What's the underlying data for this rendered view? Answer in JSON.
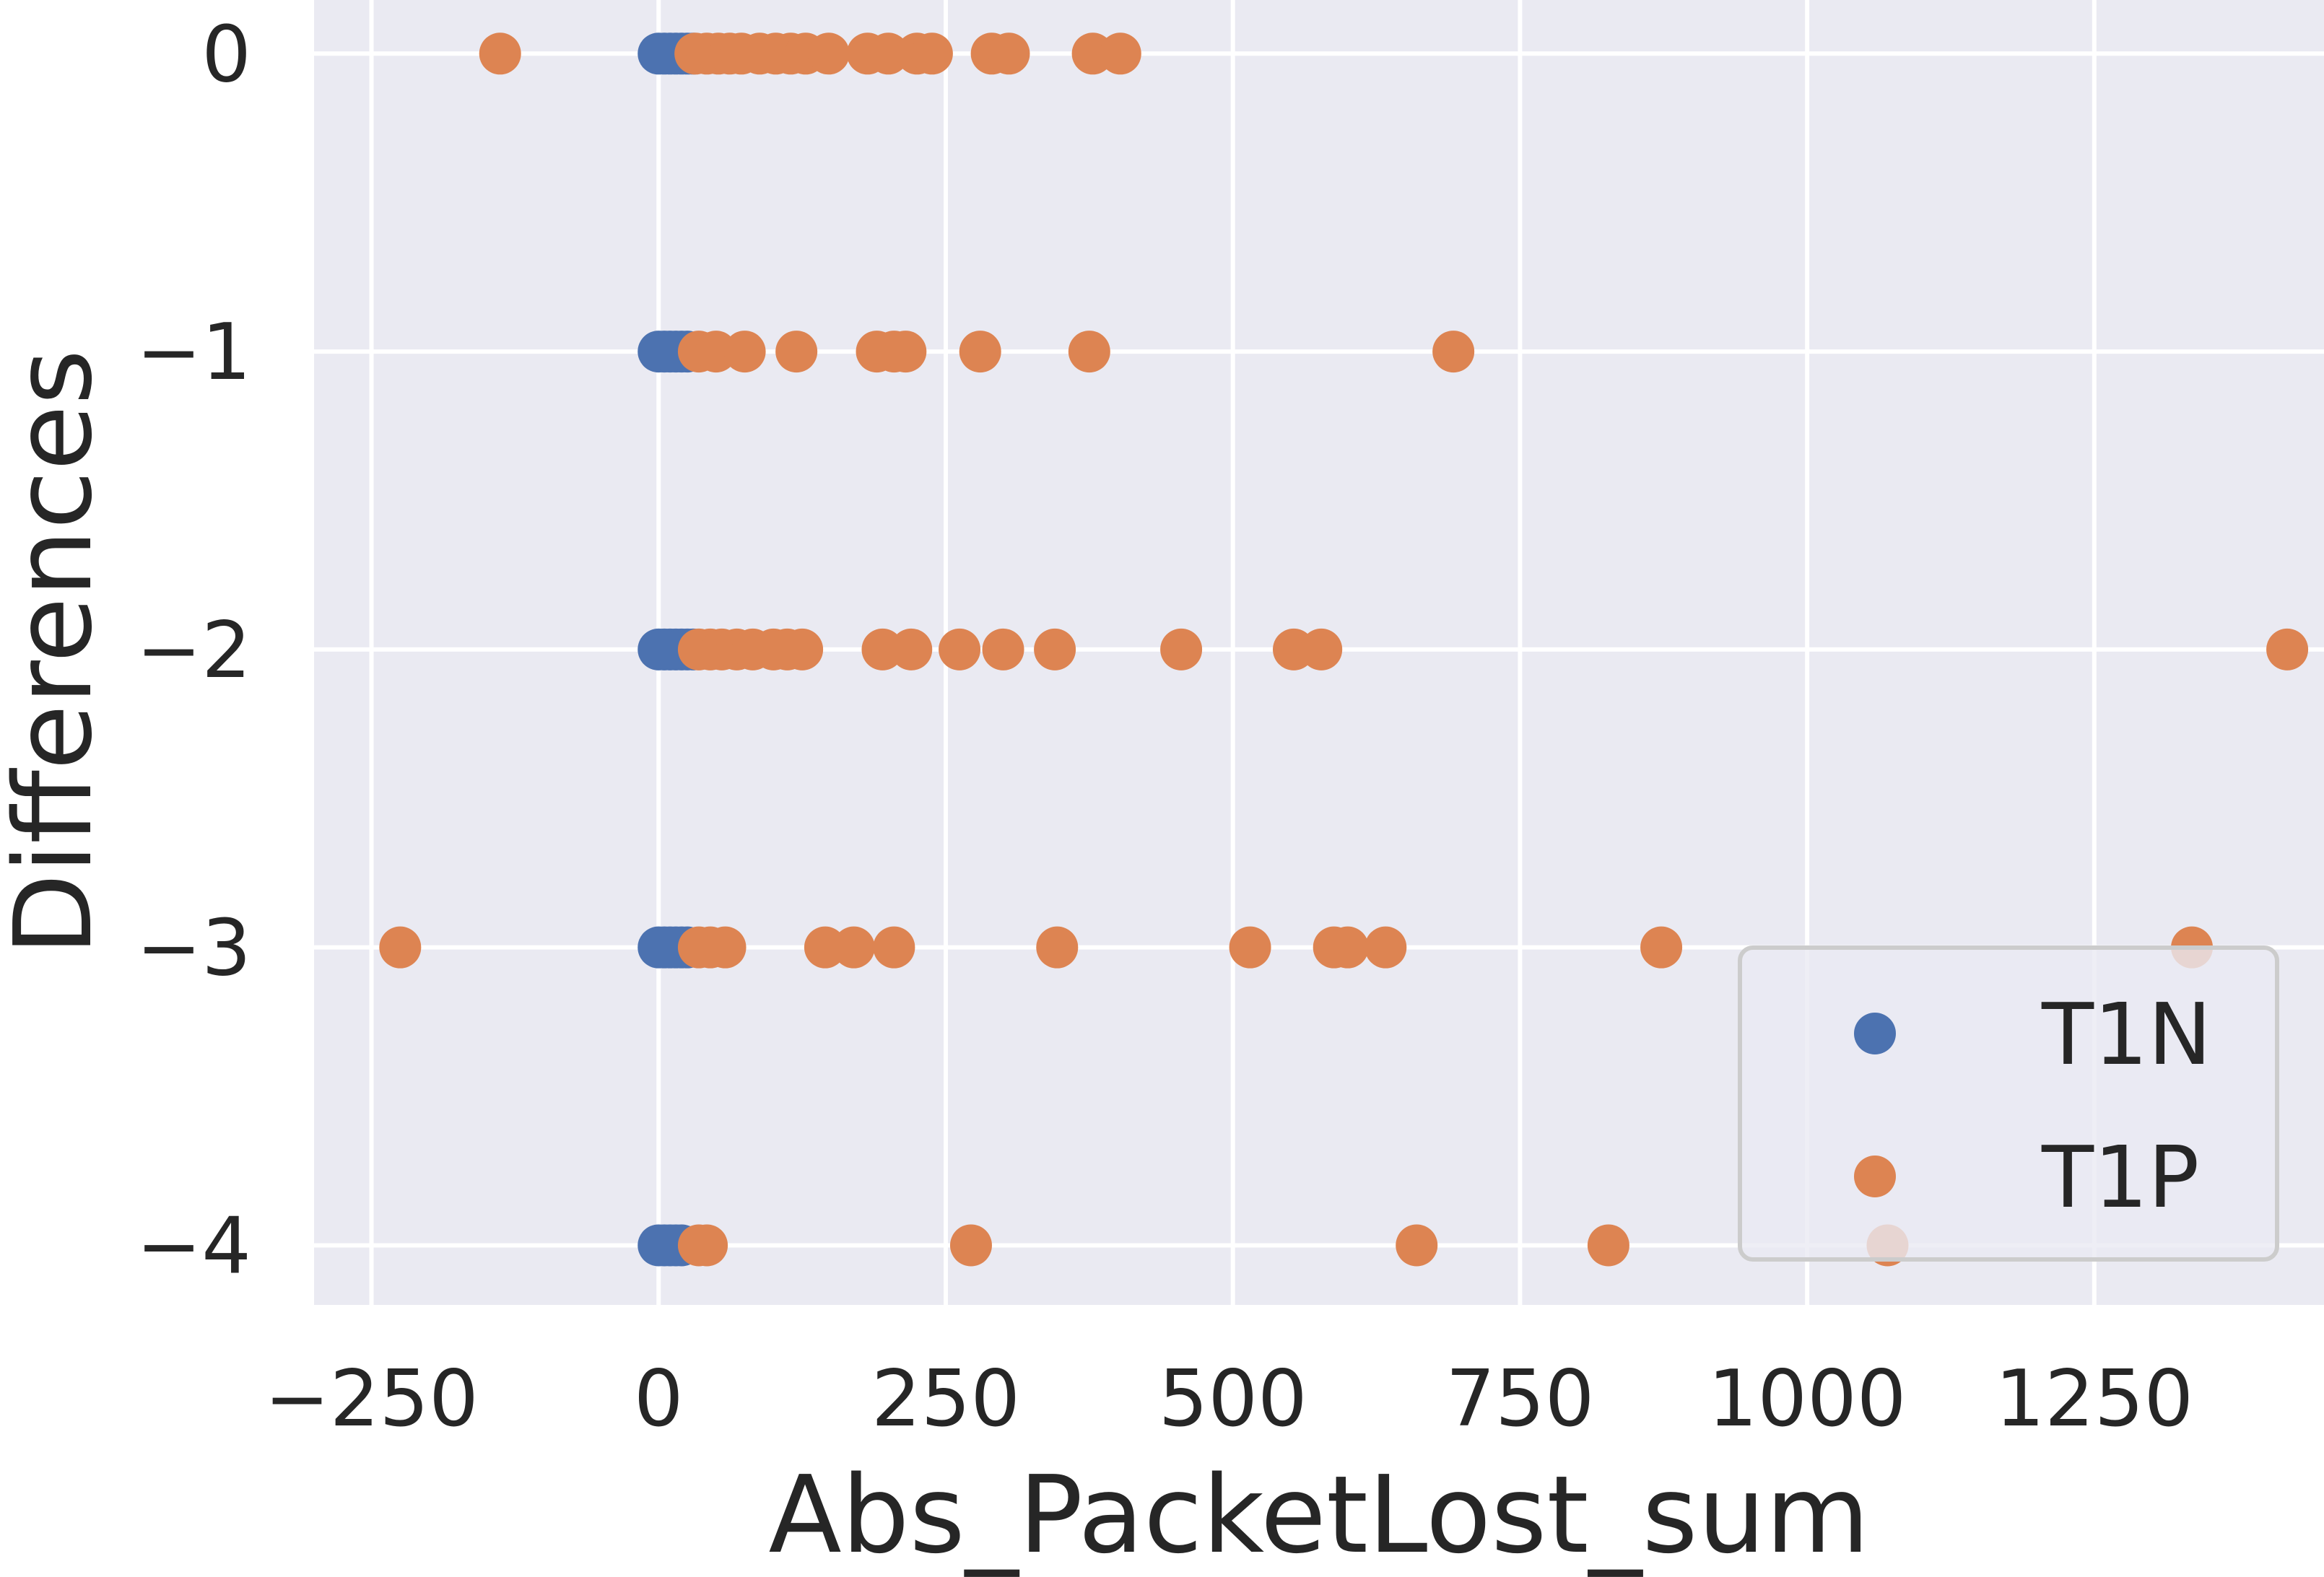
{
  "chart_data": {
    "type": "scatter",
    "title": "",
    "xlabel": "Abs_PacketLost_sum",
    "ylabel": "Differences",
    "xlim": [
      -300,
      1450
    ],
    "ylim": [
      -4.2,
      0.18
    ],
    "xticks": [
      -250,
      0,
      250,
      500,
      750,
      1000,
      1250
    ],
    "xtick_labels": [
      "−250",
      "0",
      "250",
      "500",
      "750",
      "1000",
      "1250"
    ],
    "yticks": [
      0,
      -1,
      -2,
      -3,
      -4
    ],
    "ytick_labels": [
      "0",
      "−1",
      "−2",
      "−3",
      "−4"
    ],
    "grid": true,
    "legend_position": "lower right",
    "background": "#eaeaf2",
    "series": [
      {
        "name": "T1N",
        "color": "#4c72b0",
        "points": [
          [
            0,
            0
          ],
          [
            5,
            0
          ],
          [
            10,
            0
          ],
          [
            15,
            0
          ],
          [
            20,
            0
          ],
          [
            25,
            0
          ],
          [
            30,
            0
          ],
          [
            0,
            -1
          ],
          [
            5,
            -1
          ],
          [
            10,
            -1
          ],
          [
            15,
            -1
          ],
          [
            20,
            -1
          ],
          [
            25,
            -1
          ],
          [
            0,
            -2
          ],
          [
            5,
            -2
          ],
          [
            10,
            -2
          ],
          [
            15,
            -2
          ],
          [
            20,
            -2
          ],
          [
            25,
            -2
          ],
          [
            30,
            -2
          ],
          [
            0,
            -3
          ],
          [
            5,
            -3
          ],
          [
            10,
            -3
          ],
          [
            15,
            -3
          ],
          [
            20,
            -3
          ],
          [
            25,
            -3
          ],
          [
            0,
            -4
          ],
          [
            5,
            -4
          ],
          [
            10,
            -4
          ],
          [
            15,
            -4
          ],
          [
            20,
            -4
          ]
        ]
      },
      {
        "name": "T1P",
        "color": "#dd8452",
        "points": [
          [
            -138,
            0
          ],
          [
            32,
            0
          ],
          [
            42,
            0
          ],
          [
            52,
            0
          ],
          [
            62,
            0
          ],
          [
            72,
            0
          ],
          [
            88,
            0
          ],
          [
            102,
            0
          ],
          [
            115,
            0
          ],
          [
            128,
            0
          ],
          [
            148,
            0
          ],
          [
            182,
            0
          ],
          [
            200,
            0
          ],
          [
            225,
            0
          ],
          [
            238,
            0
          ],
          [
            290,
            0
          ],
          [
            305,
            0
          ],
          [
            378,
            0
          ],
          [
            402,
            0
          ],
          [
            35,
            -1
          ],
          [
            50,
            -1
          ],
          [
            75,
            -1
          ],
          [
            120,
            -1
          ],
          [
            190,
            -1
          ],
          [
            205,
            -1
          ],
          [
            215,
            -1
          ],
          [
            280,
            -1
          ],
          [
            375,
            -1
          ],
          [
            692,
            -1
          ],
          [
            35,
            -2
          ],
          [
            45,
            -2
          ],
          [
            55,
            -2
          ],
          [
            68,
            -2
          ],
          [
            82,
            -2
          ],
          [
            100,
            -2
          ],
          [
            112,
            -2
          ],
          [
            125,
            -2
          ],
          [
            195,
            -2
          ],
          [
            220,
            -2
          ],
          [
            262,
            -2
          ],
          [
            300,
            -2
          ],
          [
            345,
            -2
          ],
          [
            455,
            -2
          ],
          [
            553,
            -2
          ],
          [
            577,
            -2
          ],
          [
            1418,
            -2
          ],
          [
            -225,
            -3
          ],
          [
            35,
            -3
          ],
          [
            45,
            -3
          ],
          [
            58,
            -3
          ],
          [
            145,
            -3
          ],
          [
            170,
            -3
          ],
          [
            205,
            -3
          ],
          [
            347,
            -3
          ],
          [
            515,
            -3
          ],
          [
            588,
            -3
          ],
          [
            600,
            -3
          ],
          [
            633,
            -3
          ],
          [
            873,
            -3
          ],
          [
            1335,
            -3
          ],
          [
            35,
            -4
          ],
          [
            42,
            -4
          ],
          [
            272,
            -4
          ],
          [
            660,
            -4
          ],
          [
            827,
            -4
          ],
          [
            1070,
            -4
          ]
        ]
      }
    ]
  }
}
